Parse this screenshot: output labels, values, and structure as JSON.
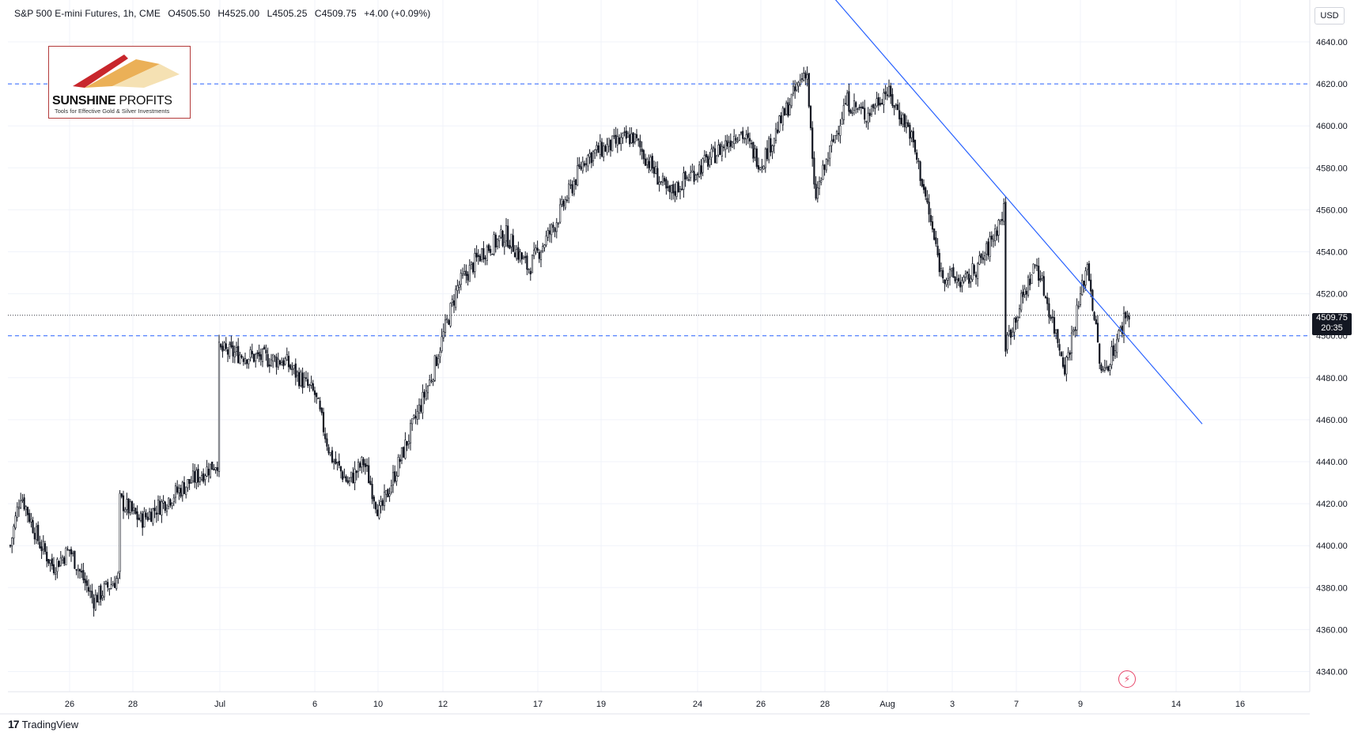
{
  "header": {
    "symbol": "S&P 500 E-mini Futures, 1h, CME",
    "open": "O4505.50",
    "high": "H4525.00",
    "low": "L4505.25",
    "close": "C4509.75",
    "change": "+4.00 (+0.09%)"
  },
  "currency_button": "USD",
  "logo": {
    "title_bold": "SUNSHINE",
    "title_thin": " PROFITS",
    "subtitle": "Tools for Effective Gold & Silver Investments"
  },
  "footer": {
    "brand": "TradingView",
    "brand_logo": "17"
  },
  "last_price": {
    "value": "4509.75",
    "countdown": "20:35"
  },
  "colors": {
    "candle": "#131722",
    "trendline": "#2962ff",
    "level_line": "#2962ff",
    "grid": "#f0f3fa"
  },
  "chart_data": {
    "type": "candlestick",
    "title": "S&P 500 E-mini Futures, 1h, CME",
    "ylim": [
      4330,
      4650
    ],
    "y_ticks": [
      4340,
      4360,
      4380,
      4400,
      4420,
      4440,
      4460,
      4480,
      4500,
      4520,
      4540,
      4560,
      4580,
      4600,
      4620,
      4640
    ],
    "x_tick_labels": [
      "26",
      "28",
      "Jul",
      "6",
      "10",
      "12",
      "17",
      "19",
      "24",
      "26",
      "28",
      "Aug",
      "3",
      "7",
      "9",
      "14",
      "16"
    ],
    "grid": true,
    "horizontal_levels": [
      4620,
      4500
    ],
    "last_price": 4509.75,
    "trendline": {
      "from": {
        "date": "Jul 27",
        "price": 4662
      },
      "to": {
        "date": "Aug 14",
        "price": 4458
      }
    },
    "price_path": [
      [
        "Jun 22",
        4400
      ],
      [
        "Jun 23",
        4425
      ],
      [
        "Jun 24",
        4402
      ],
      [
        "Jun 25",
        4390
      ],
      [
        "Jun 26",
        4398
      ],
      [
        "Jun 27",
        4374
      ],
      [
        "Jun 28",
        4385
      ],
      [
        "Jun 28",
        4422
      ],
      [
        "Jun 29",
        4412
      ],
      [
        "Jun 30",
        4428
      ],
      [
        "Jul 1",
        4440
      ],
      [
        "Jul 1",
        4493
      ],
      [
        "Jul 3",
        4490
      ],
      [
        "Jul 5",
        4488
      ],
      [
        "Jul 6",
        4472
      ],
      [
        "Jul 7",
        4443
      ],
      [
        "Jul 8",
        4430
      ],
      [
        "Jul 9",
        4440
      ],
      [
        "Jul 10",
        4415
      ],
      [
        "Jul 11",
        4445
      ],
      [
        "Jul 12",
        4480
      ],
      [
        "Jul 13",
        4523
      ],
      [
        "Jul 14",
        4540
      ],
      [
        "Jul 15",
        4548
      ],
      [
        "Jul 16",
        4532
      ],
      [
        "Jul 17",
        4552
      ],
      [
        "Jul 18",
        4585
      ],
      [
        "Jul 19",
        4590
      ],
      [
        "Jul 20",
        4595
      ],
      [
        "Jul 21",
        4578
      ],
      [
        "Jul 22",
        4567
      ],
      [
        "Jul 23",
        4575
      ],
      [
        "Jul 24",
        4585
      ],
      [
        "Jul 25",
        4598
      ],
      [
        "Jul 26",
        4582
      ],
      [
        "Jul 27",
        4628
      ],
      [
        "Jul 28",
        4565
      ],
      [
        "Jul 29",
        4612
      ],
      [
        "Jul 30",
        4605
      ],
      [
        "Jul 31",
        4617
      ],
      [
        "Aug 1",
        4598
      ],
      [
        "Aug 2",
        4575
      ],
      [
        "Aug 3",
        4530
      ],
      [
        "Aug 4",
        4525
      ],
      [
        "Aug 5",
        4538
      ],
      [
        "Aug 6",
        4560
      ],
      [
        "Aug 6",
        4495
      ],
      [
        "Aug 7",
        4535
      ],
      [
        "Aug 8",
        4485
      ],
      [
        "Aug 9",
        4535
      ],
      [
        "Aug 10",
        4480
      ],
      [
        "Aug 11",
        4505
      ],
      [
        "Aug 11",
        4509.75
      ]
    ]
  }
}
